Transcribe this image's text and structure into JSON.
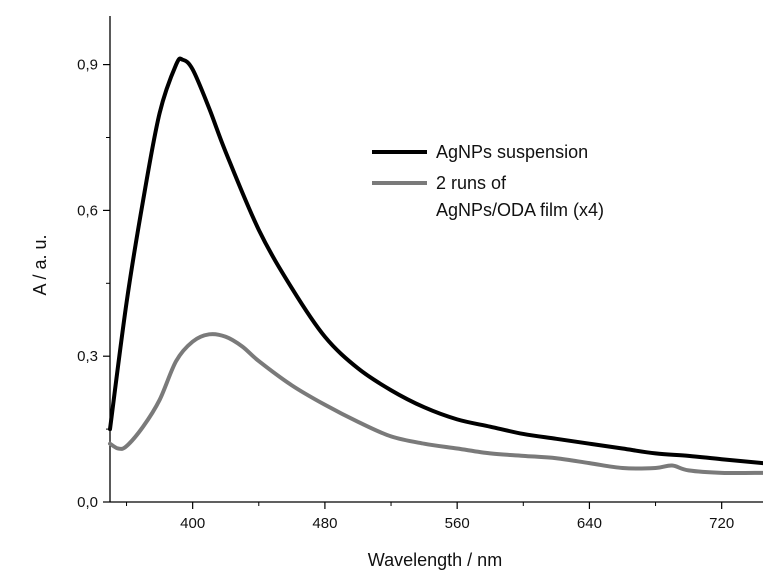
{
  "chart_data": {
    "type": "line",
    "title": "",
    "xlabel": "Wavelength / nm",
    "ylabel": "A / a. u.",
    "xlim": [
      350,
      745
    ],
    "ylim": [
      0.0,
      1.0
    ],
    "xticks": [
      400,
      480,
      560,
      640,
      720
    ],
    "xtick_labels": [
      "400",
      "480",
      "560",
      "640",
      "720"
    ],
    "yticks": [
      0.0,
      0.3,
      0.6,
      0.9
    ],
    "ytick_labels": [
      "0,0",
      "0,3",
      "0,6",
      "0,9"
    ],
    "grid": false,
    "legend_position": "upper-right",
    "series": [
      {
        "name": "AgNPs suspension",
        "color": "#000000",
        "x": [
          350,
          360,
          370,
          380,
          390,
          394,
          400,
          410,
          420,
          440,
          460,
          480,
          500,
          520,
          540,
          560,
          580,
          600,
          620,
          640,
          660,
          680,
          700,
          720,
          745
        ],
        "y": [
          0.15,
          0.41,
          0.62,
          0.8,
          0.9,
          0.91,
          0.89,
          0.81,
          0.72,
          0.56,
          0.44,
          0.34,
          0.275,
          0.23,
          0.195,
          0.17,
          0.155,
          0.14,
          0.13,
          0.12,
          0.11,
          0.1,
          0.095,
          0.088,
          0.08
        ]
      },
      {
        "name": "2 runs of AgNPs/ODA film (x4)",
        "color": "#7a7a7a",
        "x": [
          350,
          355,
          360,
          370,
          380,
          390,
          400,
          410,
          420,
          430,
          440,
          460,
          480,
          500,
          520,
          540,
          560,
          580,
          600,
          620,
          640,
          660,
          680,
          690,
          700,
          720,
          745
        ],
        "y": [
          0.12,
          0.11,
          0.115,
          0.155,
          0.21,
          0.29,
          0.33,
          0.345,
          0.34,
          0.32,
          0.29,
          0.24,
          0.2,
          0.165,
          0.135,
          0.12,
          0.11,
          0.1,
          0.095,
          0.09,
          0.08,
          0.07,
          0.07,
          0.075,
          0.065,
          0.06,
          0.06
        ]
      }
    ]
  }
}
